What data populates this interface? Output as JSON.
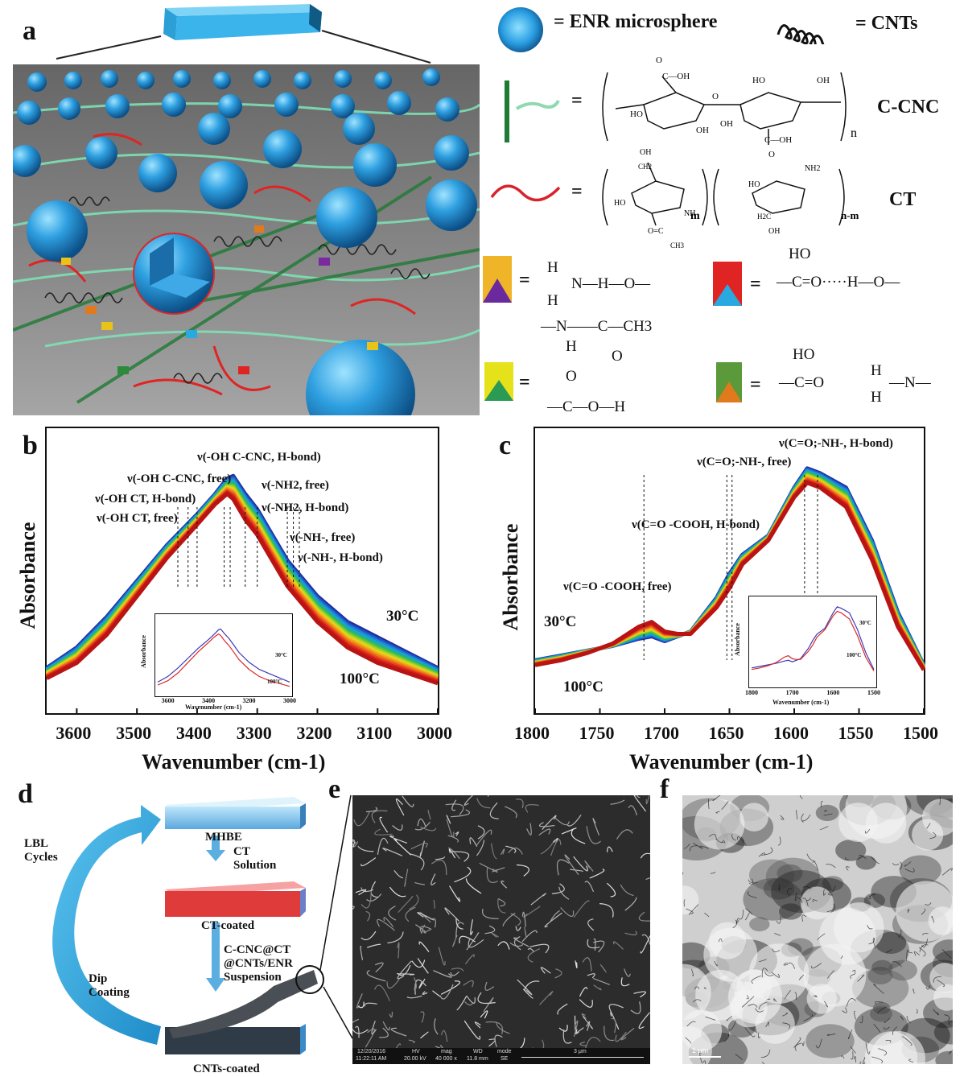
{
  "panels": {
    "a": "a",
    "b": "b",
    "c": "c",
    "d": "d",
    "e": "e",
    "f": "f"
  },
  "legend": {
    "enr": "= ENR microsphere",
    "cnts": "= CNTs",
    "ccnc_label": "C-CNC",
    "ct_label": "CT",
    "eq": "="
  },
  "hbond": {
    "nh_oh": "N—H—O—",
    "cooh_oh": "—C=O·····H—O—",
    "ho": "HO",
    "amide_top": "—N——C—CH3",
    "cooh_bottom": "—C—O—H",
    "nh_side": "—N—",
    "h": "H",
    "o": "O",
    "c_o": "—C=O"
  },
  "panel_b": {
    "ylabel": "Absorbance",
    "xlabel": "Wavenumber (cm-1)",
    "ticks": [
      "3600",
      "3500",
      "3400",
      "3300",
      "3200",
      "3100",
      "3000"
    ],
    "peaks": [
      "ν(-OH C-CNC, H-bond)",
      "ν(-OH C-CNC, free)",
      "ν(-NH2, free)",
      "ν(-OH CT, H-bond)",
      "ν(-NH2, H-bond)",
      "ν(-OH CT, free)",
      "ν(-NH-, free)",
      "ν(-NH-, H-bond)"
    ],
    "t_high": "30°C",
    "t_low": "100°C",
    "inset": {
      "ylabel": "Absorbance",
      "xlabel": "Wavenumber (cm-1)",
      "ticks": [
        "3600",
        "3400",
        "3200",
        "3000"
      ],
      "t_high": "30°C",
      "t_low": "100°C"
    }
  },
  "panel_c": {
    "ylabel": "Absorbance",
    "xlabel": "Wavenumber (cm-1)",
    "ticks": [
      "1800",
      "1750",
      "1700",
      "1650",
      "1600",
      "1550",
      "1500"
    ],
    "peaks": [
      "ν(C=O;-NH-, H-bond)",
      "ν(C=O;-NH-, free)",
      "ν(C=O -COOH, H-bond)",
      "ν(C=O -COOH, free)"
    ],
    "t_high": "30°C",
    "t_low": "100°C",
    "inset": {
      "ylabel": "Absorbance",
      "xlabel": "Wavenumber (cm-1)",
      "ticks": [
        "1800",
        "1700",
        "1600",
        "1500"
      ],
      "t_high": "30°C",
      "t_low": "100°C"
    }
  },
  "panel_d": {
    "mhbe": "MHBE",
    "ct_solution": "CT\nSolution",
    "ct_coated": "CT-coated",
    "suspension": "C-CNC@CT\n@CNTs/ENR\nSuspension",
    "lbl": "LBL\nCycles",
    "dip": "Dip\nCoating",
    "cnts_coated": "CNTs-coated"
  },
  "panel_e": {
    "sem_date": "12/20/2016",
    "sem_time": "11:22:11 AM",
    "hv": "HV",
    "hv_val": "20.00 kV",
    "mag": "mag",
    "mag_val": "40 000 x",
    "wd": "WD",
    "wd_val": "11.8 mm",
    "mode": "mode",
    "mode_val": "SE",
    "scale": "3 μm"
  },
  "panel_f": {
    "scale": "1 μm"
  },
  "chart_data": [
    {
      "type": "line",
      "title": "",
      "xlabel": "Wavenumber (cm-1)",
      "ylabel": "Absorbance",
      "xlim": [
        3650,
        3000
      ],
      "ticks": [
        3600,
        3500,
        3400,
        3300,
        3200,
        3100,
        3000
      ],
      "series": [
        {
          "name": "30°C",
          "x": [
            3650,
            3600,
            3550,
            3500,
            3450,
            3400,
            3370,
            3350,
            3340,
            3320,
            3300,
            3280,
            3250,
            3200,
            3150,
            3100,
            3050,
            3000
          ],
          "y": [
            0.12,
            0.2,
            0.32,
            0.46,
            0.6,
            0.72,
            0.8,
            0.86,
            0.87,
            0.8,
            0.74,
            0.66,
            0.54,
            0.4,
            0.3,
            0.24,
            0.18,
            0.12
          ]
        },
        {
          "name": "100°C",
          "x": [
            3650,
            3600,
            3550,
            3500,
            3450,
            3400,
            3370,
            3350,
            3340,
            3320,
            3300,
            3280,
            3250,
            3200,
            3150,
            3100,
            3050,
            3000
          ],
          "y": [
            0.08,
            0.14,
            0.25,
            0.4,
            0.55,
            0.68,
            0.76,
            0.8,
            0.78,
            0.7,
            0.64,
            0.56,
            0.44,
            0.3,
            0.2,
            0.14,
            0.1,
            0.06
          ]
        }
      ]
    },
    {
      "type": "line",
      "title": "",
      "xlabel": "Wavenumber (cm-1)",
      "ylabel": "Absorbance",
      "xlim": [
        1800,
        1500
      ],
      "ticks": [
        1800,
        1750,
        1700,
        1650,
        1600,
        1550,
        1500
      ],
      "series": [
        {
          "name": "30°C",
          "x": [
            1800,
            1780,
            1760,
            1740,
            1720,
            1710,
            1700,
            1690,
            1680,
            1660,
            1650,
            1640,
            1620,
            1600,
            1590,
            1580,
            1560,
            1540,
            1520,
            1500
          ],
          "y": [
            0.16,
            0.18,
            0.2,
            0.22,
            0.25,
            0.26,
            0.24,
            0.26,
            0.28,
            0.42,
            0.52,
            0.6,
            0.68,
            0.88,
            0.96,
            0.94,
            0.88,
            0.66,
            0.36,
            0.14
          ]
        },
        {
          "name": "100°C",
          "x": [
            1800,
            1780,
            1760,
            1740,
            1720,
            1710,
            1700,
            1690,
            1680,
            1660,
            1650,
            1640,
            1620,
            1600,
            1590,
            1580,
            1560,
            1540,
            1520,
            1500
          ],
          "y": [
            0.14,
            0.16,
            0.19,
            0.23,
            0.3,
            0.32,
            0.28,
            0.27,
            0.27,
            0.38,
            0.46,
            0.56,
            0.66,
            0.84,
            0.9,
            0.88,
            0.8,
            0.58,
            0.3,
            0.12
          ]
        }
      ]
    }
  ]
}
